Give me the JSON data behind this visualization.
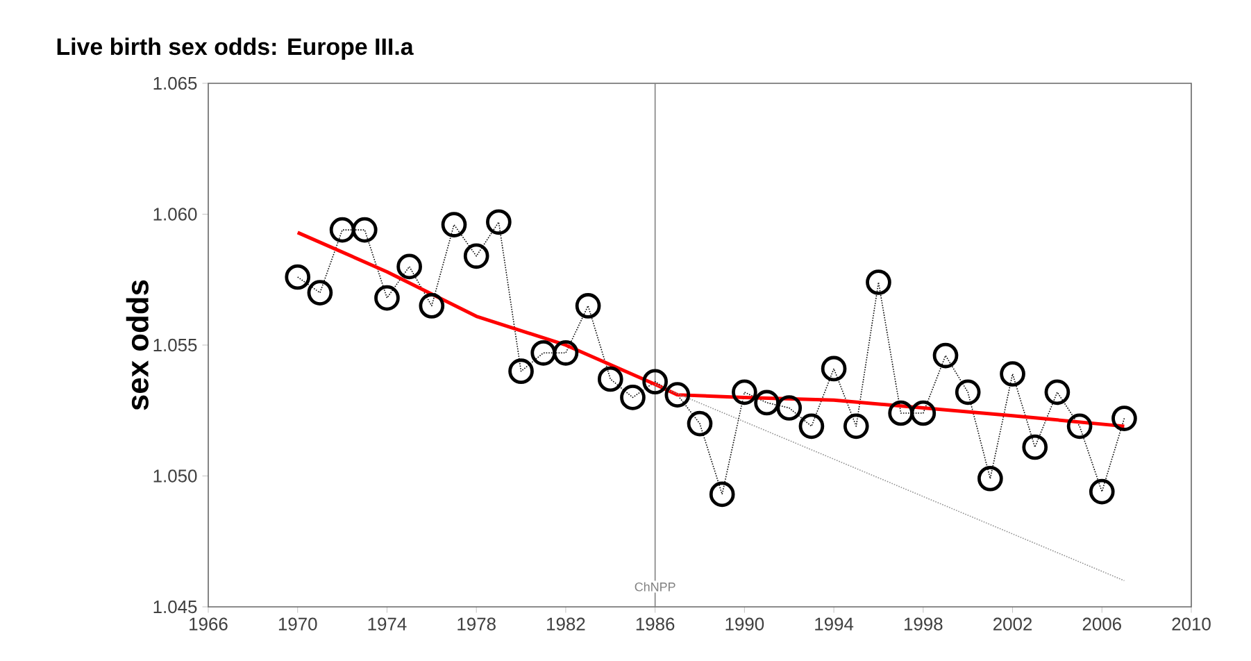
{
  "chart_data": {
    "type": "line",
    "title": "Live birth sex odds: Europe III.a",
    "ylabel": "sex odds",
    "xlim": [
      1966,
      2010
    ],
    "xticks": [
      1966,
      1970,
      1974,
      1978,
      1982,
      1986,
      1990,
      1994,
      1998,
      2002,
      2006,
      2010
    ],
    "ylim": [
      1.045,
      1.065
    ],
    "yticks": [
      {
        "value": 1.045,
        "label": "1.045"
      },
      {
        "value": 1.05,
        "label": "1.050"
      },
      {
        "value": 1.055,
        "label": "1.055"
      },
      {
        "value": 1.06,
        "label": "1.060"
      },
      {
        "value": 1.065,
        "label": "1.065"
      }
    ],
    "ref_lines": [
      {
        "axis": "x",
        "value": 1986,
        "label": "ChNPP",
        "color": "#808080"
      }
    ],
    "series": [
      {
        "color": "#000000",
        "marker": "circle",
        "line_style": "dotted",
        "x": [
          1970,
          1971,
          1972,
          1973,
          1974,
          1975,
          1976,
          1977,
          1978,
          1979,
          1980,
          1981,
          1982,
          1983,
          1984,
          1985,
          1986,
          1987,
          1988,
          1989,
          1990,
          1991,
          1992,
          1993,
          1994,
          1995,
          1996,
          1997,
          1998,
          1999,
          2000,
          2001,
          2002,
          2003,
          2004,
          2005,
          2006,
          2007
        ],
        "values": [
          1.0576,
          1.057,
          1.0594,
          1.0594,
          1.0568,
          1.058,
          1.0565,
          1.0596,
          1.0584,
          1.0597,
          1.054,
          1.0547,
          1.0547,
          1.0565,
          1.0537,
          1.053,
          1.0536,
          1.0531,
          1.052,
          1.0493,
          1.0532,
          1.0528,
          1.0526,
          1.0519,
          1.0541,
          1.0519,
          1.0574,
          1.0524,
          1.0524,
          1.0546,
          1.0532,
          1.0499,
          1.0539,
          1.0511,
          1.0532,
          1.0519,
          1.0494,
          1.0522
        ]
      },
      {
        "color": "#ff0000",
        "marker": "none",
        "line_style": "solid",
        "x": [
          1970,
          1974,
          1978,
          1982,
          1986,
          1987,
          1990,
          1994,
          1998,
          2002,
          2007
        ],
        "values": [
          1.0593,
          1.0578,
          1.0561,
          1.055,
          1.0535,
          1.0531,
          1.053,
          1.0529,
          1.0526,
          1.0523,
          1.0519
        ]
      },
      {
        "color": "#909090",
        "marker": "none",
        "line_style": "dotted",
        "x": [
          1986,
          2007
        ],
        "values": [
          1.0535,
          1.046
        ]
      }
    ]
  }
}
